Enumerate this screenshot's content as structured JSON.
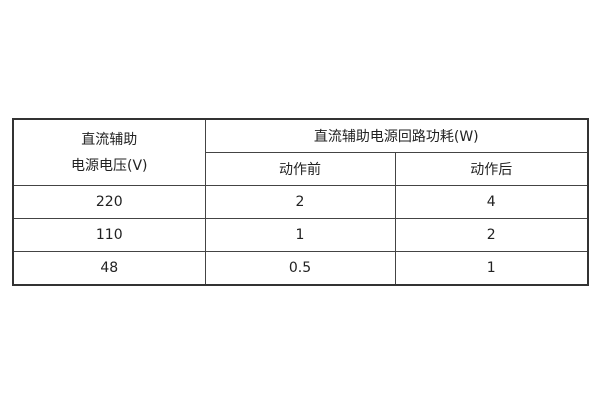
{
  "table": {
    "header": {
      "voltage_line1": "直流辅助",
      "voltage_line2": "电源电压(V)",
      "power_group": "直流辅助电源回路功耗(W)",
      "before": "动作前",
      "after": "动作后"
    },
    "rows": [
      {
        "voltage": "220",
        "before": "2",
        "after": "4"
      },
      {
        "voltage": "110",
        "before": "1",
        "after": "2"
      },
      {
        "voltage": "48",
        "before": "0.5",
        "after": "1"
      }
    ]
  }
}
